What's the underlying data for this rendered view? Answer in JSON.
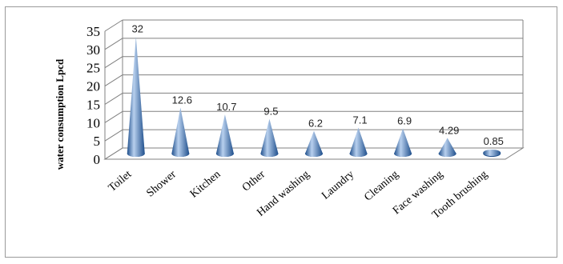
{
  "chart_data": {
    "type": "bar",
    "bar_shape": "cone",
    "three_d": true,
    "categories": [
      "Toilet",
      "Shower",
      "Kitchen",
      "Other",
      "Hand washing",
      "Laundry",
      "Cleaning",
      "Face washing",
      "Tooth brushing"
    ],
    "values": [
      32,
      12.6,
      10.7,
      9.5,
      6.2,
      7.1,
      6.9,
      4.29,
      0.85
    ],
    "data_labels": [
      "32",
      "12.6",
      "10.7",
      "9.5",
      "6.2",
      "7.1",
      "6.9",
      "4.29",
      "0.85"
    ],
    "ylabel": "water consumption Lpcd",
    "yticks": [
      "0",
      "5",
      "10",
      "15",
      "20",
      "25",
      "30",
      "35"
    ],
    "ylim": [
      0,
      35
    ],
    "grid": true,
    "legend": "none",
    "colors": {
      "cone": "#4a7ebb",
      "cone_light": "#b8d0ee",
      "cone_dark": "#1f4f8c",
      "grid": "#808080"
    }
  }
}
